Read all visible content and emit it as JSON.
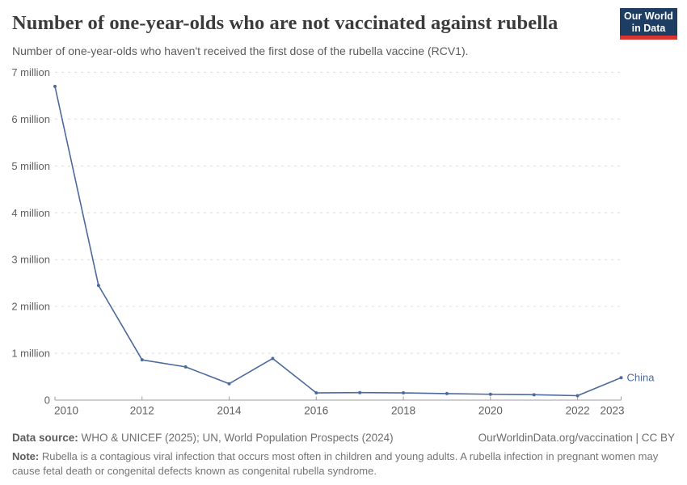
{
  "header": {
    "title": "Number of one-year-olds who are not vaccinated against rubella",
    "subtitle": "Number of one-year-olds who haven't received the first dose of the rubella vaccine (RCV1).",
    "logo": {
      "line1": "Our World",
      "line2": "in Data",
      "bg_color": "#1d3d63",
      "accent_color": "#d7352e"
    }
  },
  "chart_data": {
    "type": "line",
    "title": "Number of one-year-olds who are not vaccinated against rubella",
    "xlabel": "",
    "ylabel": "",
    "x": [
      2010,
      2011,
      2012,
      2013,
      2014,
      2015,
      2016,
      2017,
      2018,
      2019,
      2020,
      2021,
      2022,
      2023
    ],
    "series": [
      {
        "name": "China",
        "color": "#4c6a9c",
        "values": [
          6700000,
          2450000,
          860000,
          710000,
          350000,
          890000,
          155000,
          160000,
          155000,
          140000,
          125000,
          115000,
          95000,
          480000
        ]
      }
    ],
    "x_ticks": [
      2010,
      2012,
      2014,
      2016,
      2018,
      2020,
      2022,
      2023
    ],
    "y_ticks": [
      {
        "value": 0,
        "label": "0"
      },
      {
        "value": 1000000,
        "label": "1 million"
      },
      {
        "value": 2000000,
        "label": "2 million"
      },
      {
        "value": 3000000,
        "label": "3 million"
      },
      {
        "value": 4000000,
        "label": "4 million"
      },
      {
        "value": 5000000,
        "label": "5 million"
      },
      {
        "value": 6000000,
        "label": "6 million"
      },
      {
        "value": 7000000,
        "label": "7 million"
      }
    ],
    "xlim": [
      2010,
      2023
    ],
    "ylim": [
      0,
      7000000
    ],
    "grid": "horizontal-dashed",
    "grid_color": "#dcdcdc",
    "axis_color": "#9e9e9e",
    "tick_label_color": "#5f5f5f",
    "legend_position": "end-of-line-label"
  },
  "footer": {
    "datasource_label": "Data source:",
    "datasource_text": " WHO & UNICEF (2025); UN, World Population Prospects (2024)",
    "attribution": "OurWorldinData.org/vaccination | CC BY",
    "note_label": "Note:",
    "note_text": " Rubella is a contagious viral infection that occurs most often in children and young adults. A rubella infection in pregnant women may cause fetal death or congenital defects known as congenital rubella syndrome."
  }
}
